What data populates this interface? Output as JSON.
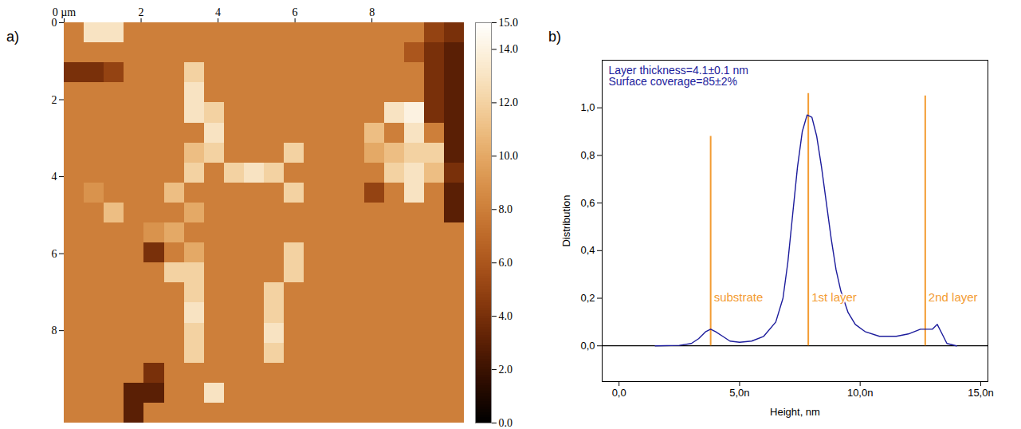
{
  "chart_data": [
    {
      "type": "heatmap",
      "label": "a)",
      "xlim": [
        0,
        10.4
      ],
      "ylim": [
        0,
        10.4
      ],
      "xticks": [
        {
          "value": 0,
          "label": "0 µm"
        },
        2,
        4,
        6,
        8
      ],
      "yticks": [
        0,
        2,
        4,
        6,
        8
      ],
      "colorbar": {
        "range": [
          0,
          15
        ],
        "ticks": [
          {
            "value": 0,
            "label": "0.0"
          },
          {
            "value": 2,
            "label": "2.0"
          },
          {
            "value": 4,
            "label": "4.0"
          },
          {
            "value": 6,
            "label": "6.0"
          },
          {
            "value": 8,
            "label": "8.0"
          },
          {
            "value": 10,
            "label": "10.0"
          },
          {
            "value": 12,
            "label": "12.0"
          },
          {
            "value": 14,
            "label": "14.0"
          },
          {
            "value": 15,
            "label": "15.0"
          }
        ]
      },
      "cells": [
        [
          8,
          13,
          13,
          8,
          8,
          8,
          8,
          8,
          8,
          8,
          8,
          8,
          8,
          8,
          8,
          8,
          8,
          8,
          5,
          4
        ],
        [
          8,
          8,
          8,
          8,
          8,
          8,
          8,
          8,
          8,
          8,
          8,
          8,
          8,
          8,
          8,
          8,
          8,
          6,
          4,
          3
        ],
        [
          4,
          4,
          5,
          8,
          8,
          8,
          12,
          8,
          8,
          8,
          8,
          8,
          8,
          8,
          8,
          8,
          8,
          8,
          4,
          3
        ],
        [
          8,
          8,
          8,
          8,
          8,
          8,
          13,
          8,
          8,
          8,
          8,
          8,
          8,
          8,
          8,
          8,
          8,
          8,
          4,
          3
        ],
        [
          8,
          8,
          8,
          8,
          8,
          8,
          13,
          12,
          8,
          8,
          8,
          8,
          8,
          8,
          8,
          8,
          13,
          14,
          4,
          3
        ],
        [
          8,
          8,
          8,
          8,
          8,
          8,
          8,
          13,
          8,
          8,
          8,
          8,
          8,
          8,
          8,
          11,
          8,
          13,
          8,
          3
        ],
        [
          8,
          8,
          8,
          8,
          8,
          8,
          11,
          12,
          8,
          8,
          8,
          12,
          8,
          8,
          8,
          10,
          11,
          12,
          12,
          3
        ],
        [
          8,
          8,
          8,
          8,
          8,
          8,
          12,
          8,
          12,
          13,
          12,
          8,
          8,
          8,
          8,
          8,
          12,
          13,
          11,
          4
        ],
        [
          8,
          9,
          8,
          8,
          8,
          11,
          8,
          8,
          8,
          8,
          8,
          12,
          8,
          8,
          8,
          5,
          8,
          13,
          8,
          3
        ],
        [
          8,
          8,
          11,
          8,
          8,
          8,
          10,
          8,
          8,
          8,
          8,
          8,
          8,
          8,
          8,
          8,
          8,
          8,
          8,
          3
        ],
        [
          8,
          8,
          8,
          8,
          9,
          10,
          8,
          8,
          8,
          8,
          8,
          8,
          8,
          8,
          8,
          8,
          8,
          8,
          8,
          8
        ],
        [
          8,
          8,
          8,
          8,
          4,
          8,
          10,
          8,
          8,
          8,
          8,
          12,
          8,
          8,
          8,
          8,
          8,
          8,
          8,
          8
        ],
        [
          8,
          8,
          8,
          8,
          8,
          12,
          12,
          8,
          8,
          8,
          8,
          12,
          8,
          8,
          8,
          8,
          8,
          8,
          8,
          8
        ],
        [
          8,
          8,
          8,
          8,
          8,
          8,
          12,
          8,
          8,
          8,
          12,
          8,
          8,
          8,
          8,
          8,
          8,
          8,
          8,
          8
        ],
        [
          8,
          8,
          8,
          8,
          8,
          8,
          13,
          8,
          8,
          8,
          12,
          8,
          8,
          8,
          8,
          8,
          8,
          8,
          8,
          8
        ],
        [
          8,
          8,
          8,
          8,
          8,
          8,
          12,
          8,
          8,
          8,
          13,
          8,
          8,
          8,
          8,
          8,
          8,
          8,
          8,
          8
        ],
        [
          8,
          8,
          8,
          8,
          8,
          8,
          12,
          8,
          8,
          8,
          12,
          8,
          8,
          8,
          8,
          8,
          8,
          8,
          8,
          8
        ],
        [
          8,
          8,
          8,
          8,
          4,
          8,
          8,
          8,
          8,
          8,
          8,
          8,
          8,
          8,
          8,
          8,
          8,
          8,
          8,
          8
        ],
        [
          8,
          8,
          8,
          3,
          3,
          8,
          8,
          13,
          8,
          8,
          8,
          8,
          8,
          8,
          8,
          8,
          8,
          8,
          8,
          8
        ],
        [
          8,
          8,
          8,
          3,
          8,
          8,
          8,
          8,
          8,
          8,
          8,
          8,
          8,
          8,
          8,
          8,
          8,
          8,
          8,
          8
        ]
      ]
    },
    {
      "type": "line",
      "label": "b)",
      "x_label": "Height, nm",
      "y_label": "Distribution",
      "annotations": [
        "Layer thickness=4.1±0.1 nm",
        "Surface coverage=85±2%"
      ],
      "color": "#1c1c9c",
      "x": [
        1.5,
        2.5,
        3.0,
        3.3,
        3.6,
        3.8,
        4.0,
        4.3,
        4.6,
        5.0,
        5.5,
        6.0,
        6.5,
        6.8,
        7.0,
        7.2,
        7.4,
        7.6,
        7.8,
        8.0,
        8.2,
        8.4,
        8.6,
        8.8,
        9.0,
        9.2,
        9.5,
        9.8,
        10.2,
        10.8,
        11.5,
        12.0,
        12.5,
        13.0,
        13.2,
        13.4,
        13.6,
        14.0
      ],
      "values": [
        0,
        0.002,
        0.01,
        0.03,
        0.06,
        0.07,
        0.06,
        0.04,
        0.02,
        0.015,
        0.02,
        0.04,
        0.1,
        0.2,
        0.35,
        0.55,
        0.75,
        0.9,
        0.97,
        0.96,
        0.88,
        0.75,
        0.6,
        0.45,
        0.32,
        0.23,
        0.14,
        0.09,
        0.06,
        0.04,
        0.04,
        0.05,
        0.07,
        0.07,
        0.09,
        0.05,
        0.01,
        0
      ],
      "reference_line_y": 0,
      "layer_lines": [
        {
          "label": "substrate",
          "x": 3.8,
          "y_top": 0.88
        },
        {
          "label": "1st layer",
          "x": 7.85,
          "y_top": 1.06
        },
        {
          "label": "2nd layer",
          "x": 12.7,
          "y_top": 1.05
        }
      ],
      "layer_line_color": "#f39c33",
      "xlim": [
        -0.7,
        15.3
      ],
      "ylim": [
        -0.15,
        1.2
      ],
      "xticks": [
        {
          "value": 0,
          "label": "0,0"
        },
        {
          "value": 5,
          "label": "5,0n"
        },
        {
          "value": 10,
          "label": "10,0n"
        },
        {
          "value": 15,
          "label": "15,0n"
        }
      ],
      "yticks": [
        {
          "value": 0,
          "label": "0,0"
        },
        {
          "value": 0.2,
          "label": "0,2"
        },
        {
          "value": 0.4,
          "label": "0,4"
        },
        {
          "value": 0.6,
          "label": "0,6"
        },
        {
          "value": 0.8,
          "label": "0,8"
        },
        {
          "value": 1.0,
          "label": "1,0"
        }
      ]
    }
  ]
}
